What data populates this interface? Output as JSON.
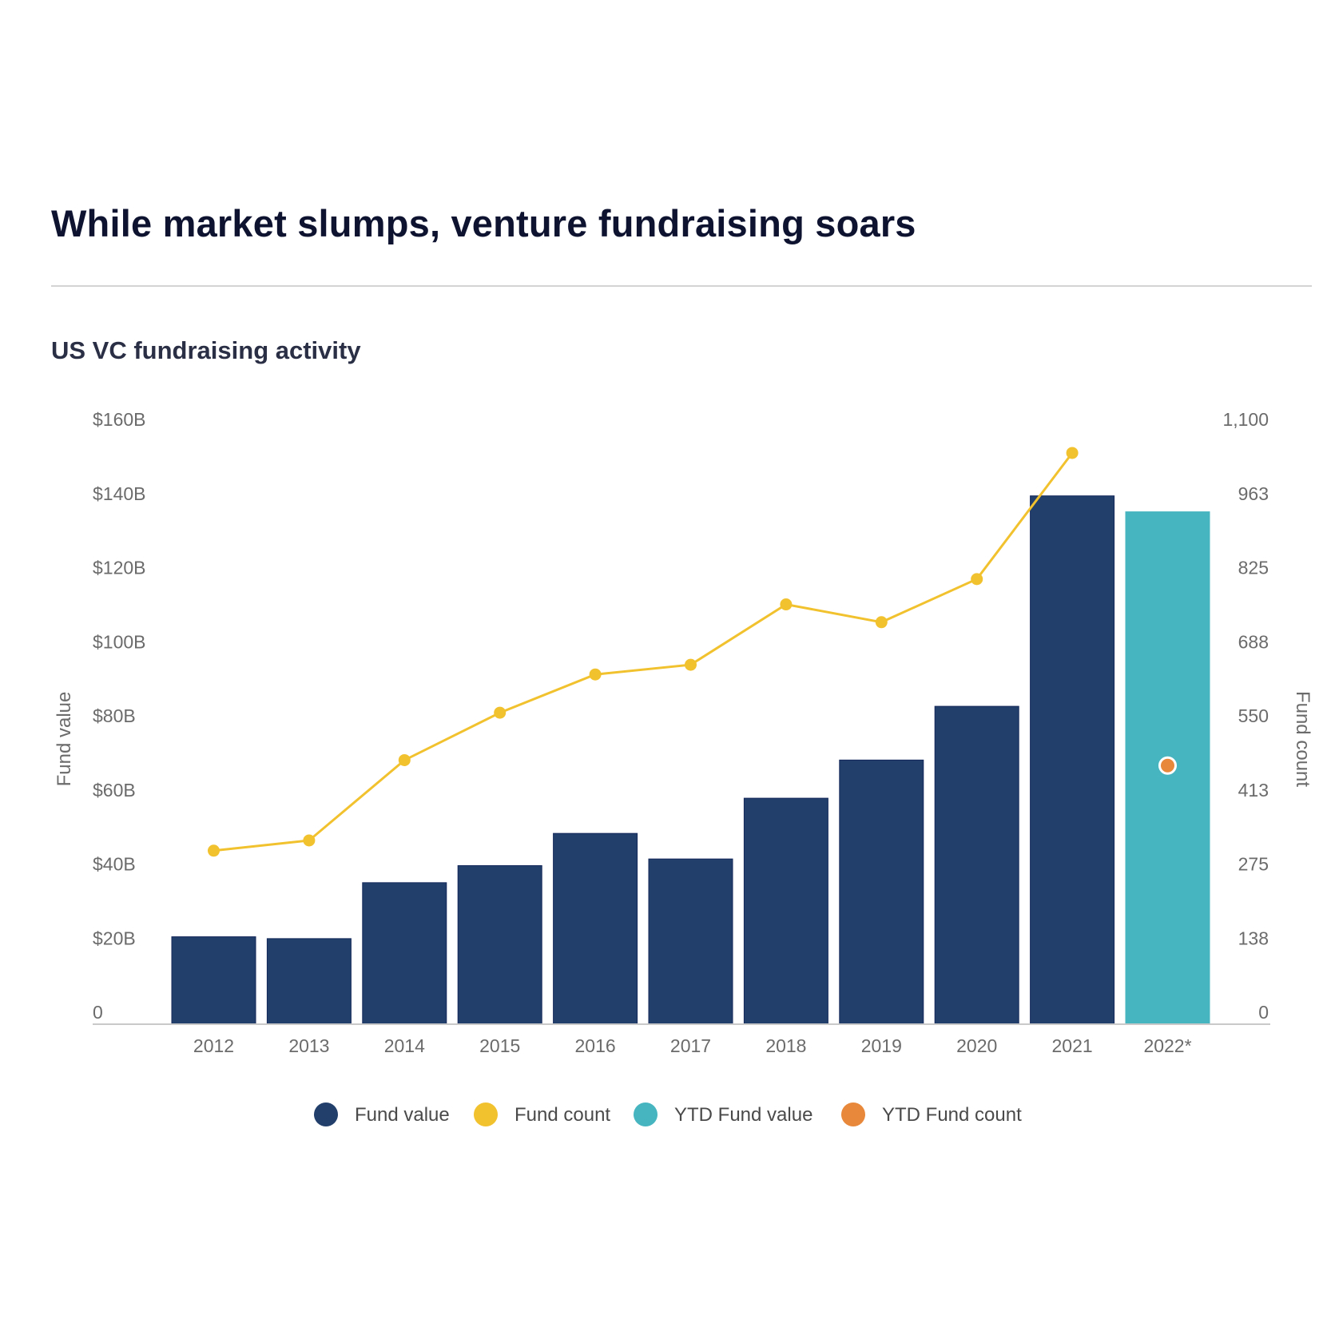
{
  "header": {
    "title": "While market slumps, venture fundraising soars",
    "subtitle": "US VC fundraising activity"
  },
  "chart_data": {
    "type": "bar",
    "title": "While market slumps, venture fundraising soars",
    "subtitle": "US VC fundraising activity",
    "categories": [
      "2012",
      "2013",
      "2014",
      "2015",
      "2016",
      "2017",
      "2018",
      "2019",
      "2020",
      "2021",
      "2022*"
    ],
    "ylabel": "Fund value",
    "y2label": "Fund count",
    "ylim": [
      0,
      160
    ],
    "y2lim": [
      0,
      1100
    ],
    "y_ticks": [
      "0",
      "$20B",
      "$40B",
      "$60B",
      "$80B",
      "$100B",
      "$120B",
      "$140B",
      "$160B"
    ],
    "y2_ticks": [
      "0",
      "138",
      "275",
      "413",
      "550",
      "688",
      "825",
      "963",
      "1,100"
    ],
    "grid": false,
    "legend_position": "bottom",
    "series": [
      {
        "name": "Fund value",
        "type": "bar",
        "axis": "left",
        "color": "#223f6b",
        "values": [
          23.6,
          23.1,
          38.2,
          42.8,
          51.5,
          44.6,
          61.0,
          71.3,
          85.8,
          142.6,
          null
        ]
      },
      {
        "name": "Fund count",
        "type": "line",
        "axis": "right",
        "color": "#f2c12e",
        "values": [
          322,
          341,
          490,
          578,
          649,
          667,
          779,
          746,
          826,
          1060,
          null
        ]
      },
      {
        "name": "YTD Fund value",
        "type": "bar",
        "axis": "left",
        "color": "#46b5c0",
        "values": [
          null,
          null,
          null,
          null,
          null,
          null,
          null,
          null,
          null,
          null,
          138.3
        ]
      },
      {
        "name": "YTD Fund count",
        "type": "point",
        "axis": "right",
        "color": "#e8883a",
        "values": [
          null,
          null,
          null,
          null,
          null,
          null,
          null,
          null,
          null,
          null,
          480
        ]
      }
    ]
  }
}
